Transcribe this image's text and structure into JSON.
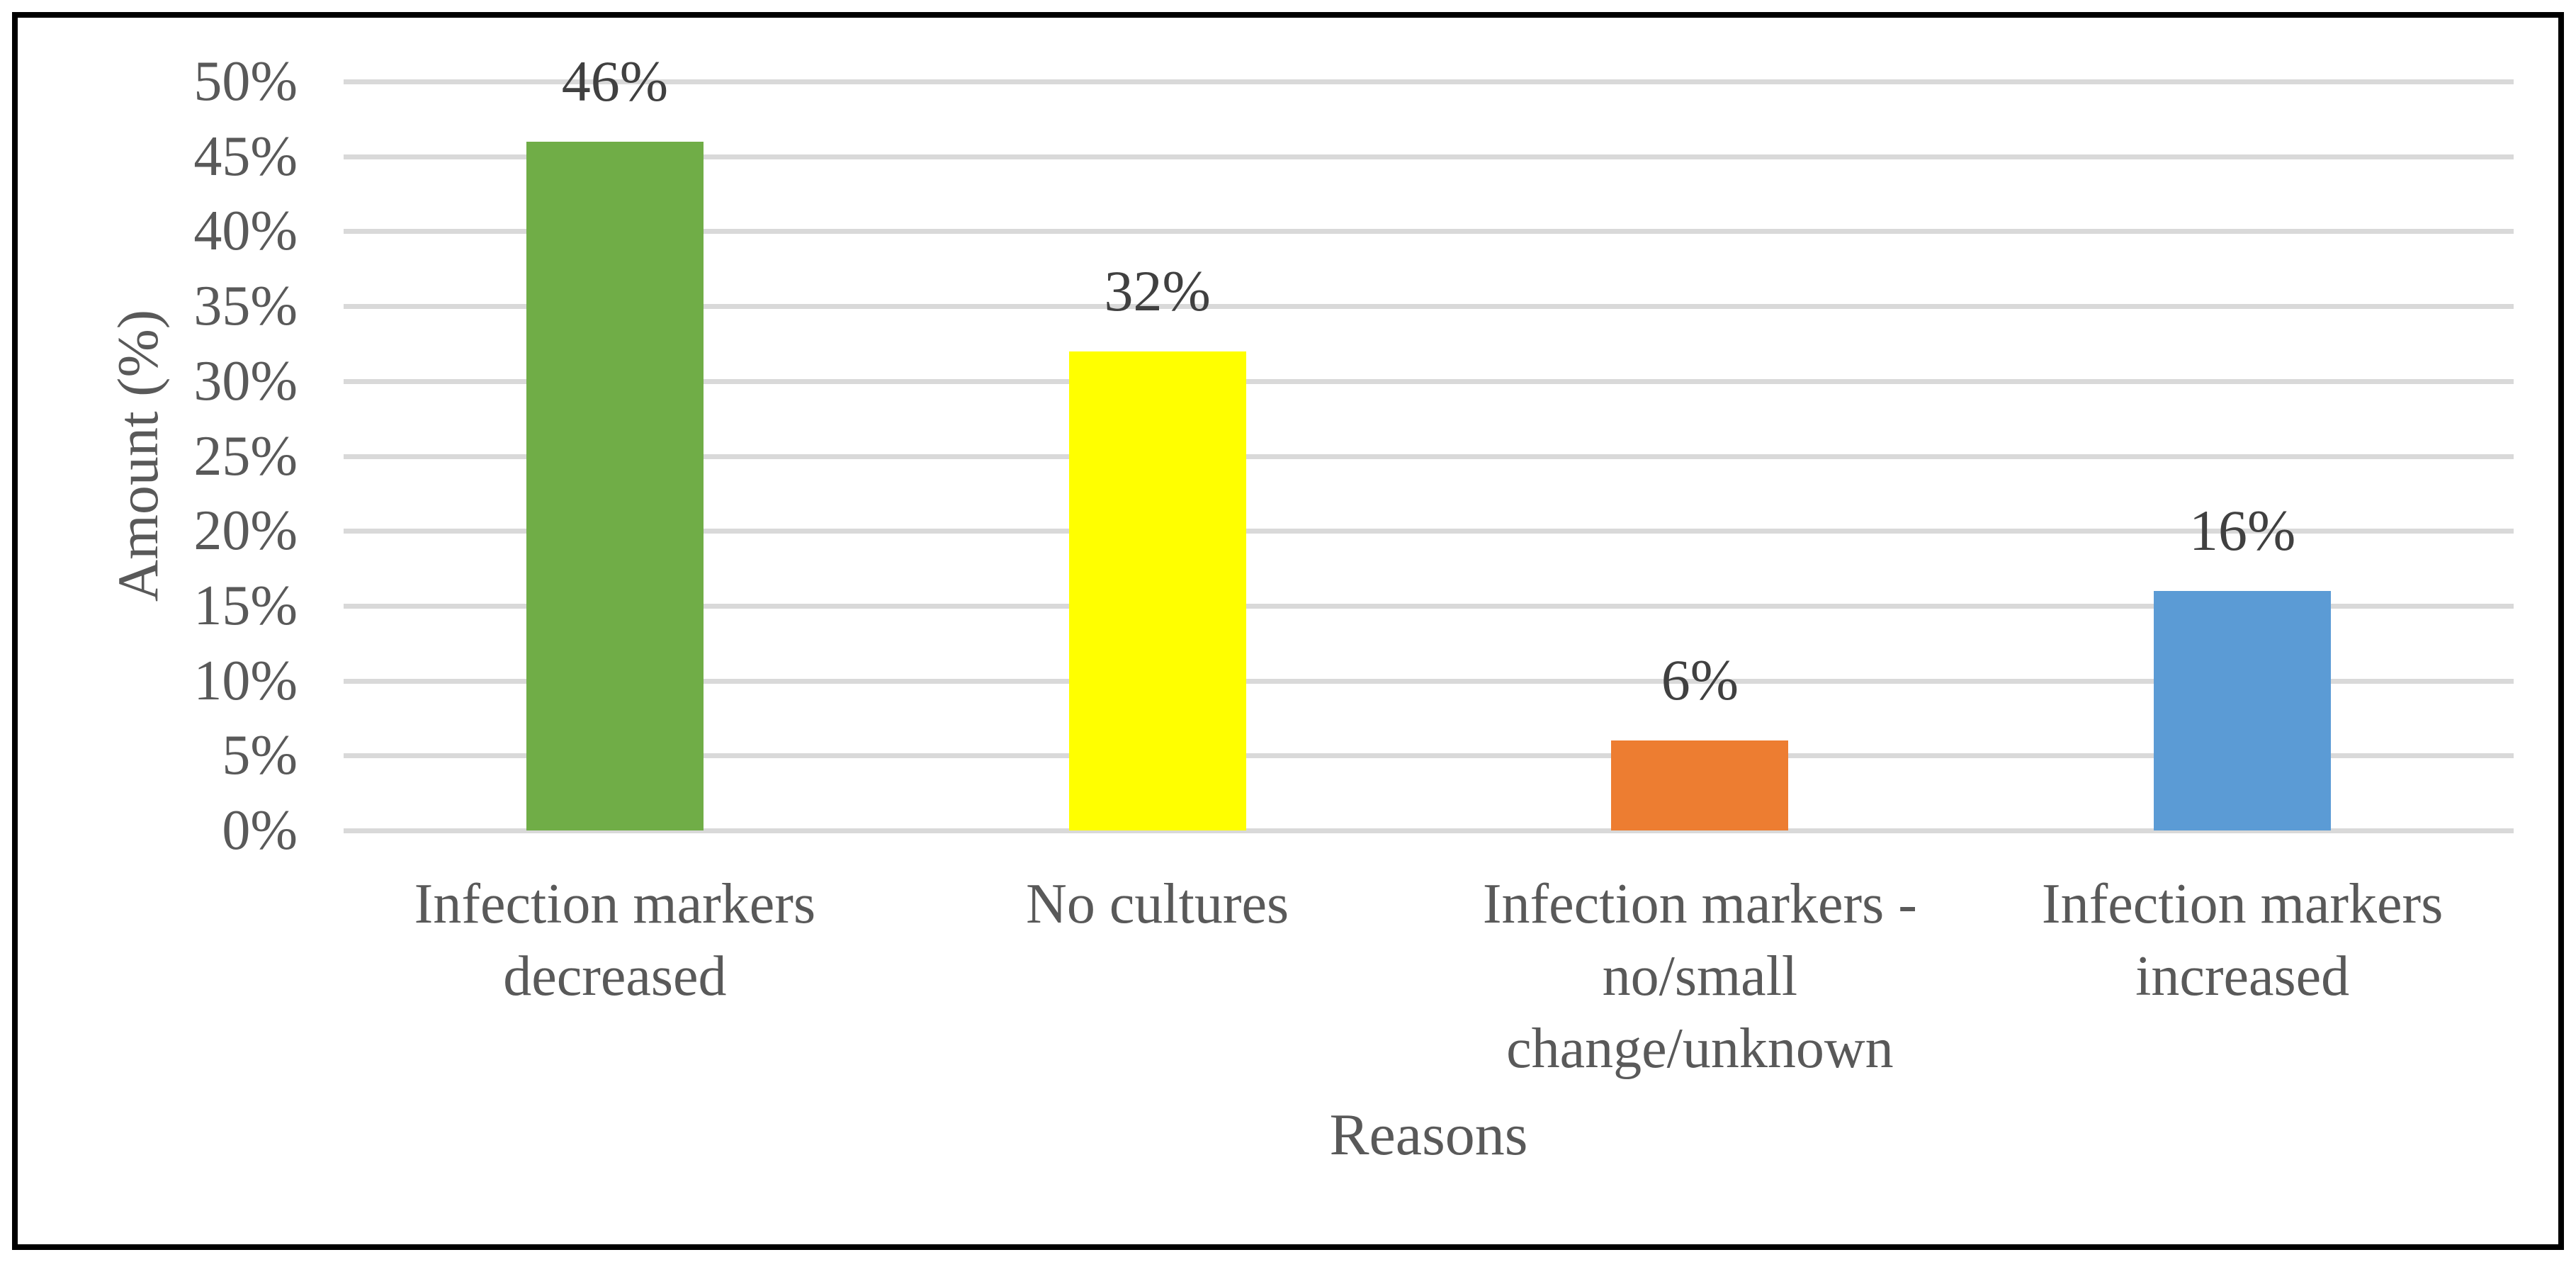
{
  "figure": {
    "background": "#FFFFFF",
    "border_color": "#000000"
  },
  "chart_data": {
    "type": "bar",
    "title": "",
    "xlabel": "Reasons",
    "ylabel": "Amount (%)",
    "categories": [
      "Infection markers decreased",
      "No cultures",
      "Infection markers - no/small change/unknown",
      "Infection markers increased"
    ],
    "category_lines": [
      [
        "Infection markers",
        "decreased"
      ],
      [
        "No cultures"
      ],
      [
        "Infection markers -",
        "no/small",
        "change/unknown"
      ],
      [
        "Infection markers",
        "increased"
      ]
    ],
    "values": [
      46,
      32,
      6,
      16
    ],
    "data_labels": [
      "46%",
      "32%",
      "6%",
      "16%"
    ],
    "bar_colors": [
      "#70AD47",
      "#FFFF00",
      "#ED7D31",
      "#5B9BD5"
    ],
    "ylim": [
      0,
      50
    ],
    "ytick_step": 5,
    "ytick_labels": [
      "0%",
      "5%",
      "10%",
      "15%",
      "20%",
      "25%",
      "30%",
      "35%",
      "40%",
      "45%",
      "50%"
    ],
    "grid": true,
    "gridline_color": "#D9D9D9",
    "axis_text_color": "#595959",
    "data_label_color": "#404040",
    "legend_position": "none"
  }
}
